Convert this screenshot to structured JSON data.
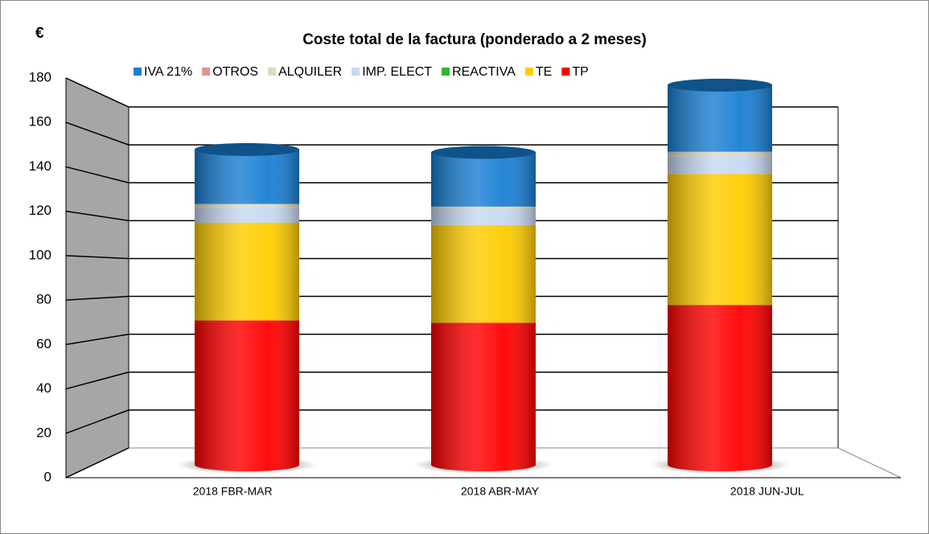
{
  "chart_data": {
    "type": "bar",
    "stacked": true,
    "title": "Coste total de la factura (ponderado a 2 meses)",
    "y_label": "€",
    "categories": [
      "2018 FBR-MAR",
      "2018 ABR-MAY",
      "2018 JUN-JUL"
    ],
    "series": [
      {
        "name": "IVA 21%",
        "color": "#1a7fd4",
        "values": [
          24.5,
          24.4,
          30
        ]
      },
      {
        "name": "OTROS",
        "color": "#d99694",
        "values": [
          0,
          0,
          0
        ]
      },
      {
        "name": "ALQUILER",
        "color": "#ddd9c3",
        "values": [
          1.5,
          1.5,
          2
        ]
      },
      {
        "name": "IMP. ELECT",
        "color": "#c6d9f1",
        "values": [
          7,
          6.8,
          8
        ]
      },
      {
        "name": "REACTIVA",
        "color": "#2db82d",
        "values": [
          0,
          0,
          0
        ]
      },
      {
        "name": "TE",
        "color": "#ffcc00",
        "values": [
          44,
          44,
          59
        ]
      },
      {
        "name": "TP",
        "color": "#ff0000",
        "values": [
          65,
          64,
          72
        ]
      }
    ],
    "ylim": [
      0,
      180
    ],
    "yticks": [
      0,
      20,
      40,
      60,
      80,
      100,
      120,
      140,
      160,
      180
    ],
    "grid": true
  }
}
